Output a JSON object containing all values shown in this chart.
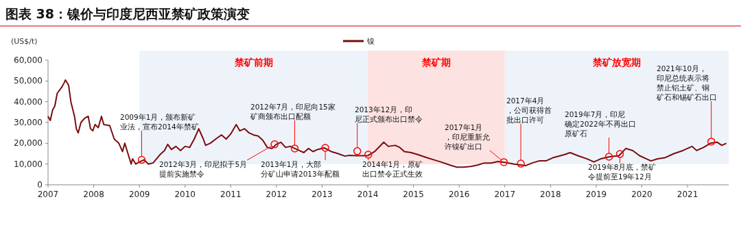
{
  "chart_data": {
    "type": "line",
    "title": "图表 38：镍价与印度尼西亚禁矿政策演变",
    "ylabel": "(US$/t)",
    "x": [
      2007.0,
      2007.05,
      2007.1,
      2007.15,
      2007.2,
      2007.3,
      2007.35,
      2007.38,
      2007.45,
      2007.5,
      2007.58,
      2007.62,
      2007.66,
      2007.72,
      2007.8,
      2007.88,
      2007.93,
      2007.98,
      2008.03,
      2008.1,
      2008.17,
      2008.22,
      2008.35,
      2008.45,
      2008.55,
      2008.63,
      2008.68,
      2008.75,
      2008.82,
      2008.85,
      2008.92,
      2009.0,
      2009.1,
      2009.2,
      2009.3,
      2009.45,
      2009.55,
      2009.62,
      2009.7,
      2009.8,
      2009.9,
      2010.0,
      2010.1,
      2010.2,
      2010.3,
      2010.4,
      2010.45,
      2010.55,
      2010.7,
      2010.8,
      2010.9,
      2011.0,
      2011.12,
      2011.2,
      2011.3,
      2011.4,
      2011.5,
      2011.6,
      2011.7,
      2011.8,
      2011.9,
      2012.0,
      2012.1,
      2012.2,
      2012.3,
      2012.4,
      2012.5,
      2012.6,
      2012.7,
      2012.8,
      2012.9,
      2013.05,
      2013.2,
      2013.35,
      2013.5,
      2013.6,
      2013.75,
      2013.9,
      2014.0,
      2014.15,
      2014.35,
      2014.45,
      2014.6,
      2014.7,
      2014.8,
      2014.95,
      2015.1,
      2015.3,
      2015.45,
      2015.6,
      2015.8,
      2015.95,
      2016.1,
      2016.25,
      2016.4,
      2016.55,
      2016.7,
      2016.85,
      2017.0,
      2017.2,
      2017.45,
      2017.6,
      2017.75,
      2017.9,
      2018.05,
      2018.3,
      2018.43,
      2018.6,
      2018.8,
      2018.95,
      2019.1,
      2019.3,
      2019.5,
      2019.65,
      2019.8,
      2019.95,
      2020.1,
      2020.2,
      2020.35,
      2020.5,
      2020.7,
      2020.9,
      2021.1,
      2021.2,
      2021.35,
      2021.5,
      2021.65,
      2021.75,
      2021.85
    ],
    "series": [
      {
        "name": "镍",
        "color": "#7a0c0c",
        "values": [
          33000,
          31000,
          36000,
          38000,
          44000,
          47000,
          49000,
          50500,
          48000,
          40000,
          33000,
          27000,
          25000,
          30000,
          32000,
          33000,
          27000,
          26000,
          29000,
          27500,
          33000,
          29000,
          28500,
          22000,
          20000,
          16000,
          20000,
          15000,
          10000,
          12500,
          10000,
          11000,
          12000,
          10000,
          10500,
          14500,
          16500,
          19500,
          17000,
          18500,
          16500,
          18500,
          18000,
          22000,
          27000,
          22000,
          19000,
          20000,
          22500,
          24000,
          22000,
          24500,
          29000,
          26000,
          27000,
          25000,
          24000,
          23500,
          21500,
          18000,
          17500,
          19500,
          20500,
          18000,
          18500,
          17500,
          16500,
          15500,
          17500,
          16000,
          17000,
          17800,
          16000,
          15000,
          13800,
          14200,
          14000,
          14000,
          14000,
          16000,
          20500,
          18500,
          19000,
          18000,
          16000,
          15500,
          14500,
          13000,
          12000,
          11000,
          9500,
          8500,
          8500,
          8800,
          9500,
          10500,
          10500,
          11200,
          10800,
          10000,
          9200,
          10500,
          11500,
          11500,
          13000,
          14500,
          15500,
          14000,
          12500,
          11000,
          12500,
          13500,
          14000,
          17500,
          16500,
          14000,
          12500,
          11500,
          12500,
          13000,
          15000,
          16500,
          18500,
          16500,
          18000,
          20000,
          20500,
          19000,
          20000
        ]
      }
    ],
    "xlim": [
      2007,
      2021.9
    ],
    "xticks": [
      2007,
      2008,
      2009,
      2010,
      2011,
      2012,
      2013,
      2014,
      2015,
      2016,
      2017,
      2018,
      2019,
      2020,
      2021
    ],
    "ylim": [
      0,
      60000
    ],
    "yticks": [
      {
        "value": 0,
        "label": "0"
      },
      {
        "value": 10000,
        "label": "10,000"
      },
      {
        "value": 20000,
        "label": "20,000"
      },
      {
        "value": 30000,
        "label": "30,000"
      },
      {
        "value": 40000,
        "label": "40,000"
      },
      {
        "value": 50000,
        "label": "50,000"
      },
      {
        "value": 60000,
        "label": "60,000"
      }
    ],
    "bands": [
      {
        "axis": "x",
        "from": 2009,
        "to": 2014,
        "label": "禁矿前期",
        "color": "#eef3fa"
      },
      {
        "axis": "x",
        "from": 2014,
        "to": 2017,
        "label": "禁矿期",
        "color": "#fde2e2"
      },
      {
        "axis": "x",
        "from": 2017,
        "to": 2021.9,
        "label": "禁矿放宽期",
        "color": "#eef3fa"
      }
    ],
    "annotations": [
      {
        "text": "2009年1月，颁布新矿业法，宣布2014年禁矿",
        "x": 2009.05,
        "y": 12000
      },
      {
        "text": "2012年3月，印尼拟于5月提前实施禁令",
        "x": 2011.96,
        "y": 19500
      },
      {
        "text": "2012年7月，印尼向15家矿商颁布出口配额",
        "x": 2012.4,
        "y": 17500
      },
      {
        "text": "2013年1月，大部分矿山申请2013年配额",
        "x": 2013.07,
        "y": 17800
      },
      {
        "text": "2013年12月，印尼正式颁布出口禁令",
        "x": 2013.77,
        "y": 16200
      },
      {
        "text": "2014年1月，原矿出口禁令正式生效",
        "x": 2014.01,
        "y": 14500
      },
      {
        "text": "2017年1月，印尼重新允许镍矿出口",
        "x": 2016.98,
        "y": 10900
      },
      {
        "text": "2017年4月，公司获得首批出口许可",
        "x": 2017.35,
        "y": 10200
      },
      {
        "text": "2019年7月，印尼确定2022年不再出口原矿石",
        "x": 2019.28,
        "y": 13500
      },
      {
        "text": "2019年8月底，禁矿令提前至19年12月",
        "x": 2019.52,
        "y": 14800
      },
      {
        "text": "2021年10月，印尼总统表示将禁止铝土矿、铜矿石和锡矿石出口",
        "x": 2021.52,
        "y": 20800
      }
    ],
    "legend": "top",
    "grid": false
  }
}
